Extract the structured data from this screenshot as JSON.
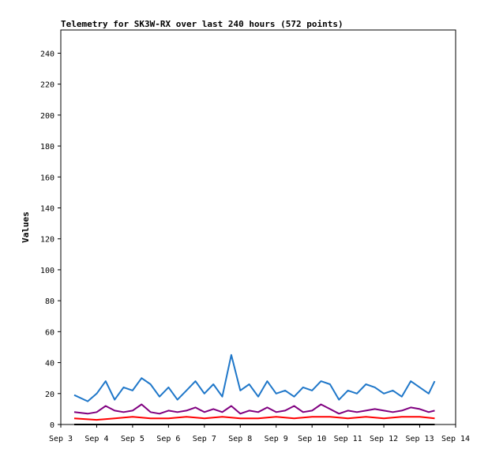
{
  "chart_data": {
    "type": "line",
    "title": "Telemetry for SK3W-RX over last 240 hours (572 points)",
    "xlabel": "",
    "ylabel": "Values",
    "ylim": [
      0,
      255
    ],
    "xlim": [
      "2024-09-03T00:00",
      "2024-09-14T00:00"
    ],
    "x_ticks": [
      "Sep 3",
      "Sep 4",
      "Sep 5",
      "Sep 6",
      "Sep 7",
      "Sep 8",
      "Sep 9",
      "Sep 10",
      "Sep 11",
      "Sep 12",
      "Sep 13",
      "Sep 14"
    ],
    "y_ticks": [
      0,
      20,
      40,
      60,
      80,
      100,
      120,
      140,
      160,
      180,
      200,
      220,
      240
    ],
    "grid": false,
    "legend": "none",
    "colors": {
      "series_blue": "#1f77c9",
      "series_purple": "#800080",
      "series_red": "#ff0000",
      "series_black": "#000000"
    },
    "series": [
      {
        "color": "#1f77c9",
        "x": [
          "2024-09-03T09:00",
          "2024-09-03T18:00",
          "2024-09-04T00:00",
          "2024-09-04T06:00",
          "2024-09-04T12:00",
          "2024-09-04T18:00",
          "2024-09-05T00:00",
          "2024-09-05T06:00",
          "2024-09-05T12:00",
          "2024-09-05T18:00",
          "2024-09-06T00:00",
          "2024-09-06T06:00",
          "2024-09-06T12:00",
          "2024-09-06T18:00",
          "2024-09-07T00:00",
          "2024-09-07T06:00",
          "2024-09-07T12:00",
          "2024-09-07T18:00",
          "2024-09-08T00:00",
          "2024-09-08T06:00",
          "2024-09-08T12:00",
          "2024-09-08T18:00",
          "2024-09-09T00:00",
          "2024-09-09T06:00",
          "2024-09-09T12:00",
          "2024-09-09T18:00",
          "2024-09-10T00:00",
          "2024-09-10T06:00",
          "2024-09-10T12:00",
          "2024-09-10T18:00",
          "2024-09-11T00:00",
          "2024-09-11T06:00",
          "2024-09-11T12:00",
          "2024-09-11T18:00",
          "2024-09-12T00:00",
          "2024-09-12T06:00",
          "2024-09-12T12:00",
          "2024-09-12T18:00",
          "2024-09-13T00:00",
          "2024-09-13T06:00",
          "2024-09-13T10:00"
        ],
        "y": [
          19,
          15,
          20,
          28,
          16,
          24,
          22,
          30,
          26,
          18,
          24,
          16,
          22,
          28,
          20,
          26,
          18,
          45,
          22,
          26,
          18,
          28,
          20,
          22,
          18,
          24,
          22,
          28,
          26,
          16,
          22,
          20,
          26,
          24,
          20,
          22,
          18,
          28,
          24,
          20,
          28
        ]
      },
      {
        "color": "#800080",
        "x": [
          "2024-09-03T09:00",
          "2024-09-03T18:00",
          "2024-09-04T00:00",
          "2024-09-04T06:00",
          "2024-09-04T12:00",
          "2024-09-04T18:00",
          "2024-09-05T00:00",
          "2024-09-05T06:00",
          "2024-09-05T12:00",
          "2024-09-05T18:00",
          "2024-09-06T00:00",
          "2024-09-06T06:00",
          "2024-09-06T12:00",
          "2024-09-06T18:00",
          "2024-09-07T00:00",
          "2024-09-07T06:00",
          "2024-09-07T12:00",
          "2024-09-07T18:00",
          "2024-09-08T00:00",
          "2024-09-08T06:00",
          "2024-09-08T12:00",
          "2024-09-08T18:00",
          "2024-09-09T00:00",
          "2024-09-09T06:00",
          "2024-09-09T12:00",
          "2024-09-09T18:00",
          "2024-09-10T00:00",
          "2024-09-10T06:00",
          "2024-09-10T12:00",
          "2024-09-10T18:00",
          "2024-09-11T00:00",
          "2024-09-11T06:00",
          "2024-09-11T12:00",
          "2024-09-11T18:00",
          "2024-09-12T00:00",
          "2024-09-12T06:00",
          "2024-09-12T12:00",
          "2024-09-12T18:00",
          "2024-09-13T00:00",
          "2024-09-13T06:00",
          "2024-09-13T10:00"
        ],
        "y": [
          8,
          7,
          8,
          12,
          9,
          8,
          9,
          13,
          8,
          7,
          9,
          8,
          9,
          11,
          8,
          10,
          8,
          12,
          7,
          9,
          8,
          11,
          8,
          9,
          12,
          8,
          9,
          13,
          10,
          7,
          9,
          8,
          9,
          10,
          9,
          8,
          9,
          11,
          10,
          8,
          9
        ]
      },
      {
        "color": "#ff0000",
        "x": [
          "2024-09-03T09:00",
          "2024-09-04T00:00",
          "2024-09-04T12:00",
          "2024-09-05T00:00",
          "2024-09-05T12:00",
          "2024-09-06T00:00",
          "2024-09-06T12:00",
          "2024-09-07T00:00",
          "2024-09-07T12:00",
          "2024-09-08T00:00",
          "2024-09-08T12:00",
          "2024-09-09T00:00",
          "2024-09-09T12:00",
          "2024-09-10T00:00",
          "2024-09-10T12:00",
          "2024-09-11T00:00",
          "2024-09-11T12:00",
          "2024-09-12T00:00",
          "2024-09-12T12:00",
          "2024-09-13T00:00",
          "2024-09-13T10:00"
        ],
        "y": [
          4,
          3,
          4,
          5,
          4,
          4,
          5,
          4,
          5,
          4,
          4,
          5,
          4,
          5,
          5,
          4,
          5,
          4,
          5,
          5,
          4
        ]
      },
      {
        "color": "#000000",
        "x": [
          "2024-09-03T09:00",
          "2024-09-13T10:00"
        ],
        "y": [
          0,
          0
        ]
      }
    ]
  }
}
